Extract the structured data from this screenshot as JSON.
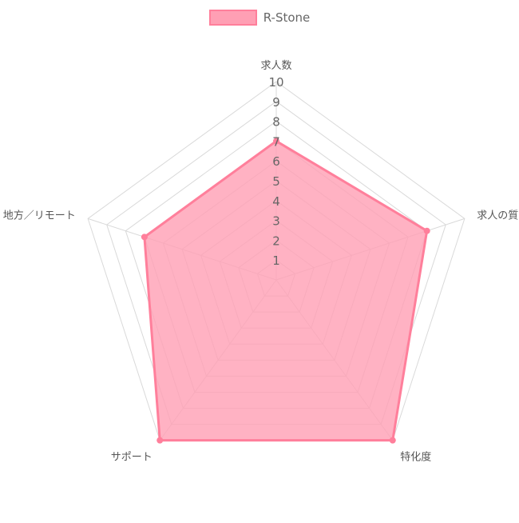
{
  "legend": {
    "series_name": "R-Stone"
  },
  "colors": {
    "series_fill": "#ff9fb4",
    "series_stroke": "#ff7f9b",
    "grid": "#d9d9d9",
    "tick_text": "#666666",
    "label_text": "#555555"
  },
  "chart_data": {
    "type": "radar",
    "categories": [
      "求人数",
      "求人の質",
      "特化度",
      "サポート",
      "地方／リモート"
    ],
    "series": [
      {
        "name": "R-Stone",
        "values": [
          7,
          8,
          10,
          10,
          7
        ]
      }
    ],
    "rlim": [
      0,
      10
    ],
    "ticks": [
      1,
      2,
      3,
      4,
      5,
      6,
      7,
      8,
      9,
      10
    ],
    "grid": true,
    "legend_position": "top"
  }
}
